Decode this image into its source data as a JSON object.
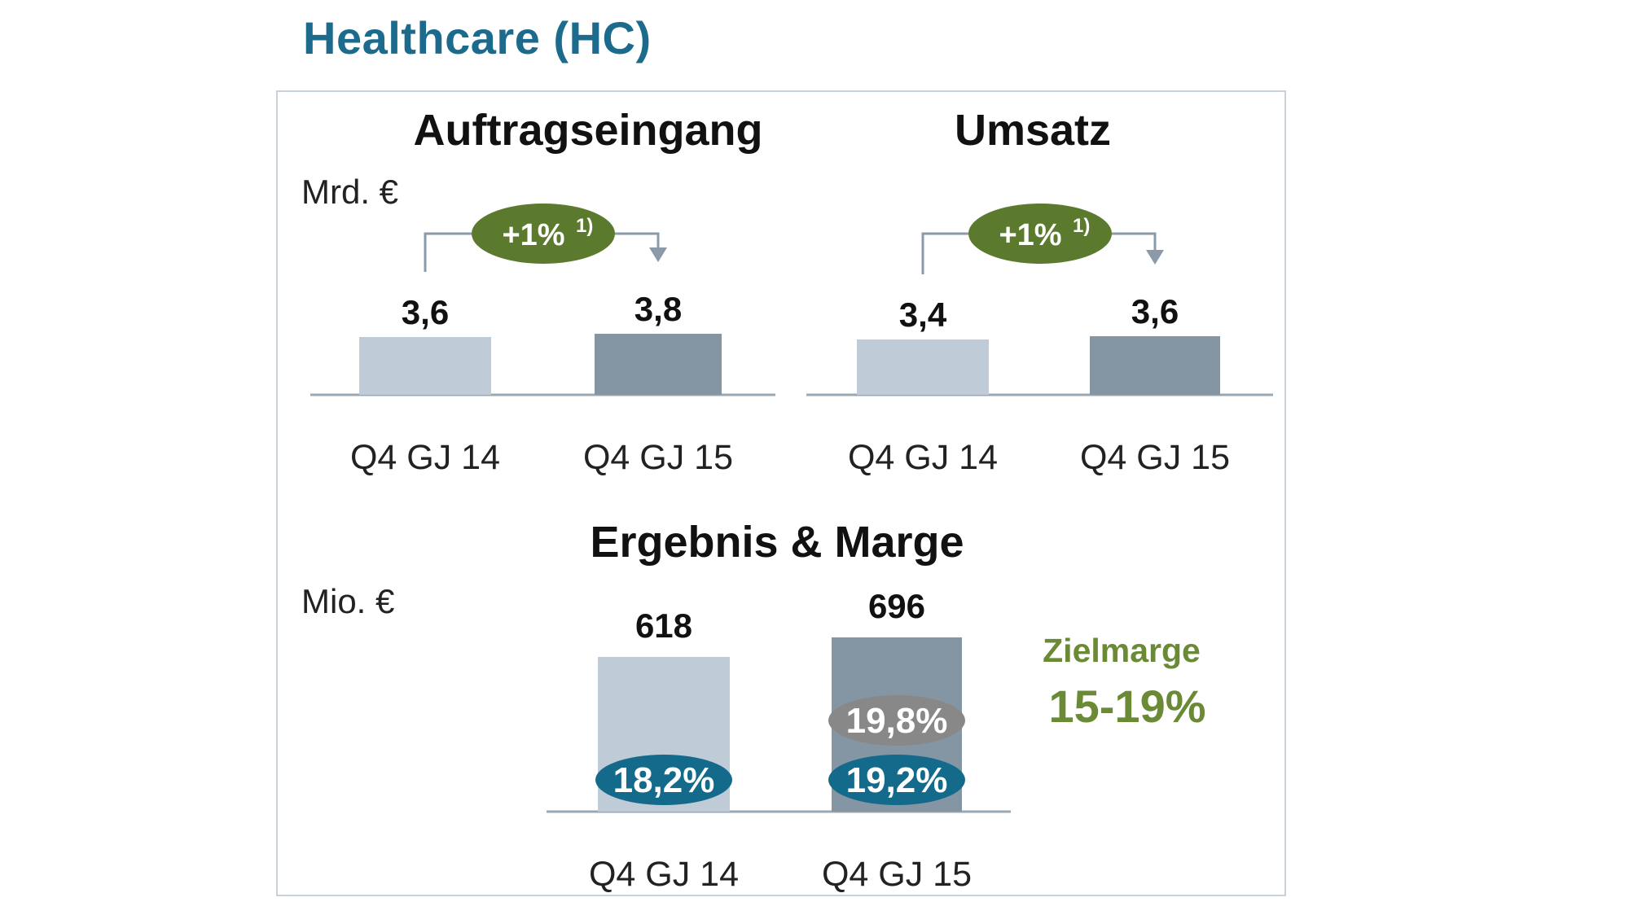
{
  "page": {
    "title": "Healthcare (HC)"
  },
  "colors": {
    "title": "#1c6a8c",
    "bar_prev": "#bfcbd6",
    "bar_curr": "#8495a3",
    "axis": "#9aa8b4",
    "growth_badge": "#5b7a2e",
    "margin_blue": "#146a8a",
    "margin_gray": "#888888",
    "target_green": "#6b8a35",
    "arrow": "#8a9aa8"
  },
  "chart_data": [
    {
      "type": "bar",
      "title": "Auftragseingang",
      "unit": "Mrd. €",
      "categories": [
        "Q4 GJ 14",
        "Q4 GJ 15"
      ],
      "values": [
        3.6,
        3.8
      ],
      "value_labels": [
        "3,6",
        "3,8"
      ],
      "growth": {
        "label": "+1%",
        "footnote": "1)"
      },
      "ylim": [
        0,
        3.8
      ]
    },
    {
      "type": "bar",
      "title": "Umsatz",
      "unit": "",
      "categories": [
        "Q4 GJ 14",
        "Q4 GJ 15"
      ],
      "values": [
        3.4,
        3.6
      ],
      "value_labels": [
        "3,4",
        "3,6"
      ],
      "growth": {
        "label": "+1%",
        "footnote": "1)"
      },
      "ylim": [
        0,
        3.6
      ]
    },
    {
      "type": "bar",
      "title": "Ergebnis & Marge",
      "unit": "Mio. €",
      "categories": [
        "Q4 GJ 14",
        "Q4 GJ 15"
      ],
      "values": [
        618,
        696
      ],
      "value_labels": [
        "618",
        "696"
      ],
      "margins": [
        {
          "label": "18,2%",
          "style": "blue"
        },
        {
          "label": "19,2%",
          "style": "blue"
        }
      ],
      "extra_margins": [
        null,
        {
          "label": "19,8%",
          "style": "gray"
        }
      ],
      "target": {
        "label": "Zielmarge",
        "value": "15-19%"
      },
      "ylim": [
        0,
        696
      ]
    }
  ]
}
